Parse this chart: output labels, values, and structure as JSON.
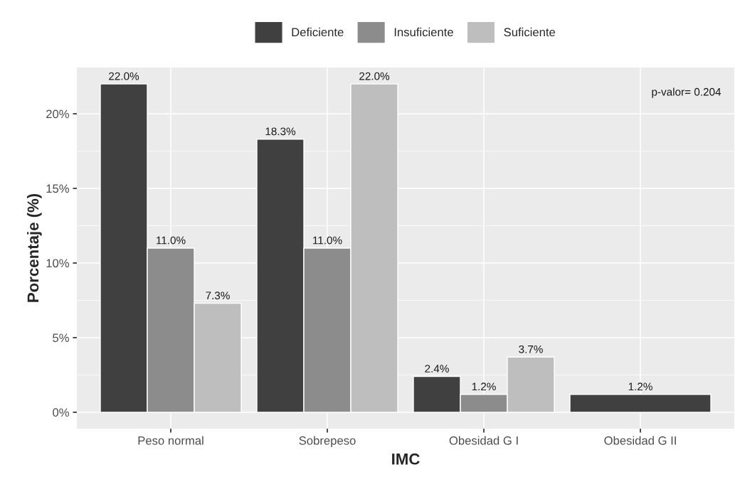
{
  "chart_data": {
    "type": "bar",
    "xlabel": "IMC",
    "ylabel": "Porcentaje (%)",
    "categories": [
      "Peso normal",
      "Sobrepeso",
      "Obesidad G I",
      "Obesidad G II"
    ],
    "series": [
      {
        "name": "Deficiente",
        "color": "#404040",
        "values": [
          22.0,
          18.3,
          2.4,
          1.2
        ],
        "value_labels": [
          "22.0%",
          "18.3%",
          "2.4%",
          "1.2%"
        ]
      },
      {
        "name": "Insuficiente",
        "color": "#8c8c8c",
        "values": [
          11.0,
          11.0,
          1.2,
          null
        ],
        "value_labels": [
          "11.0%",
          "11.0%",
          "1.2%",
          null
        ]
      },
      {
        "name": "Suficiente",
        "color": "#bebebe",
        "values": [
          7.3,
          22.0,
          3.7,
          null
        ],
        "value_labels": [
          "7.3%",
          "22.0%",
          "3.7%",
          null
        ]
      }
    ],
    "ylim": [
      -1.1,
      23.1
    ],
    "yticks": [
      {
        "value": 0,
        "label": "0%"
      },
      {
        "value": 5,
        "label": "5%"
      },
      {
        "value": 10,
        "label": "10%"
      },
      {
        "value": 15,
        "label": "15%"
      },
      {
        "value": 20,
        "label": "20%"
      }
    ],
    "annotations": [
      "p-valor= 0.204"
    ],
    "grid": true,
    "legend": "top"
  }
}
